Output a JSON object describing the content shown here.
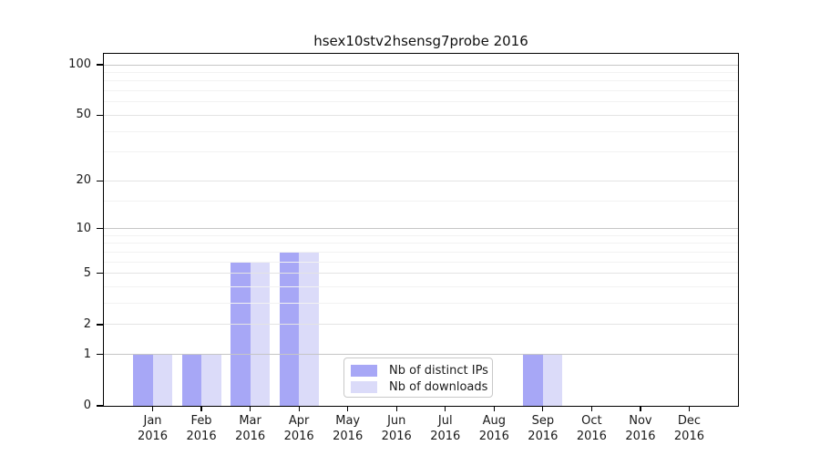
{
  "chart_data": {
    "type": "bar",
    "title": "hsex10stv2hsensg7probe 2016",
    "year_label": "2016",
    "categories": [
      "Jan 2016",
      "Feb 2016",
      "Mar 2016",
      "Apr 2016",
      "May 2016",
      "Jun 2016",
      "Jul 2016",
      "Aug 2016",
      "Sep 2016",
      "Oct 2016",
      "Nov 2016",
      "Dec 2016"
    ],
    "months": [
      "Jan",
      "Feb",
      "Mar",
      "Apr",
      "May",
      "Jun",
      "Jul",
      "Aug",
      "Sep",
      "Oct",
      "Nov",
      "Dec"
    ],
    "series": [
      {
        "name": "Nb of distinct IPs",
        "color": "#a7a7f6",
        "values": [
          1,
          1,
          6,
          7,
          0,
          0,
          0,
          0,
          1,
          0,
          0,
          0
        ]
      },
      {
        "name": "Nb of downloads",
        "color": "#dbdbf9",
        "values": [
          1,
          1,
          6,
          7,
          0,
          0,
          0,
          0,
          1,
          0,
          0,
          0
        ]
      }
    ],
    "yscale": "log10(1+x)",
    "ytick_values": [
      0,
      1,
      2,
      5,
      10,
      20,
      50,
      100
    ],
    "ytick_labels": [
      "0",
      "1",
      "2",
      "5",
      "10",
      "20",
      "50",
      "100"
    ],
    "decade_gridlines": [
      1,
      10,
      100
    ],
    "minor_gridlines": [
      3,
      4,
      6,
      7,
      8,
      9,
      15,
      30,
      40,
      60,
      70,
      80,
      90
    ],
    "xlabel": "",
    "ylabel": "",
    "grid": "on",
    "legend_position": "lower center",
    "colors": {
      "grid_decade": "#c6c6c6",
      "grid_major": "#e4e4e4",
      "grid_minor": "#f2f2f2",
      "spine": "#000000",
      "text": "#1a1a1a"
    }
  }
}
